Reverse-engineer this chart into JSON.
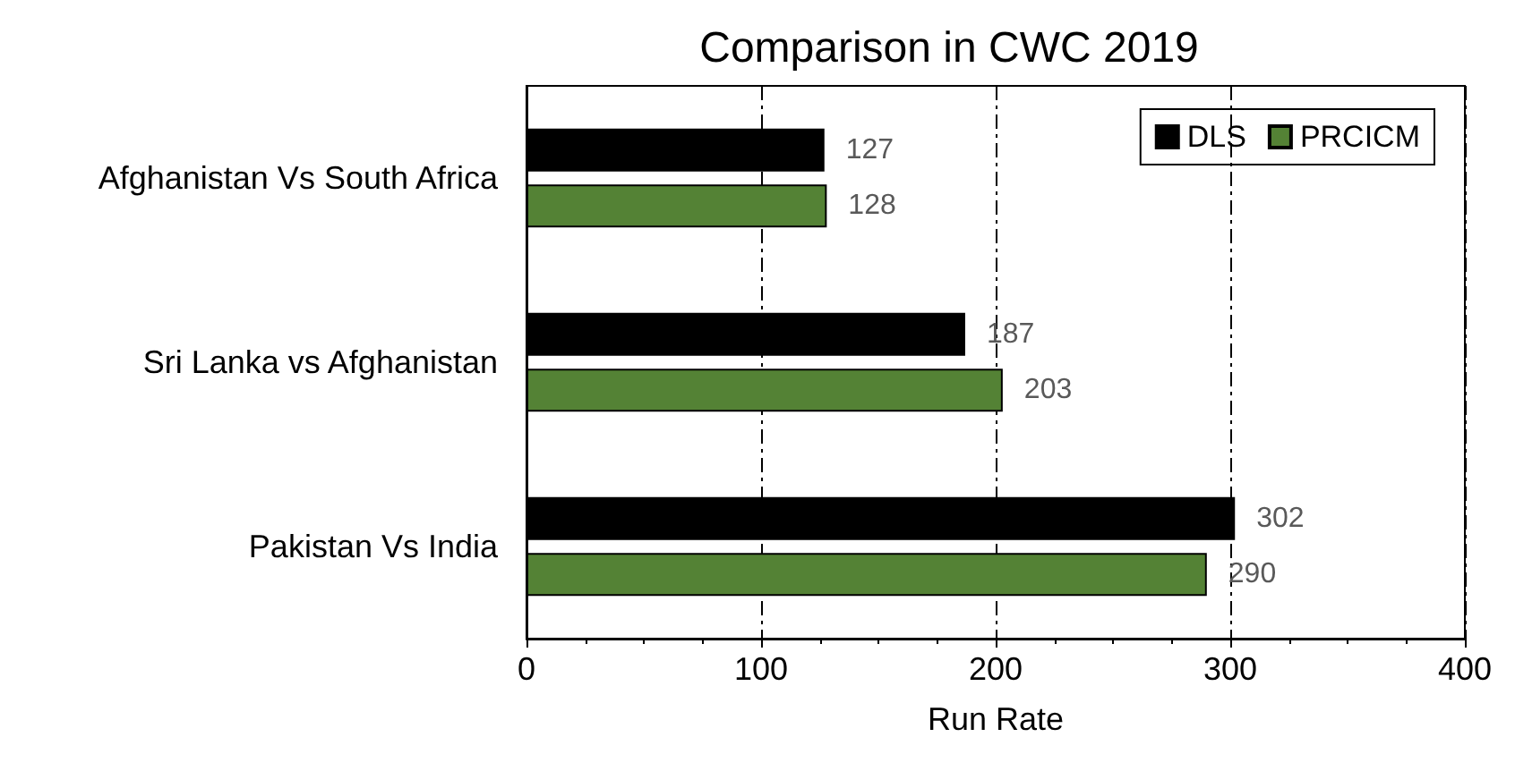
{
  "chart_data": {
    "type": "bar",
    "orientation": "horizontal",
    "title": "Comparison in CWC 2019",
    "xlabel": "Run Rate",
    "categories": [
      "Afghanistan Vs South Africa",
      "Sri Lanka vs Afghanistan",
      "Pakistan Vs India"
    ],
    "series": [
      {
        "name": "DLS",
        "color": "#000000",
        "values": [
          127,
          187,
          302
        ]
      },
      {
        "name": "PRCICM",
        "color": "#548235",
        "values": [
          128,
          203,
          290
        ]
      }
    ],
    "xlim": [
      0,
      400
    ],
    "xticks": [
      0,
      100,
      200,
      300,
      400
    ],
    "grid": "x",
    "legend": "top right",
    "data_labels": true
  }
}
